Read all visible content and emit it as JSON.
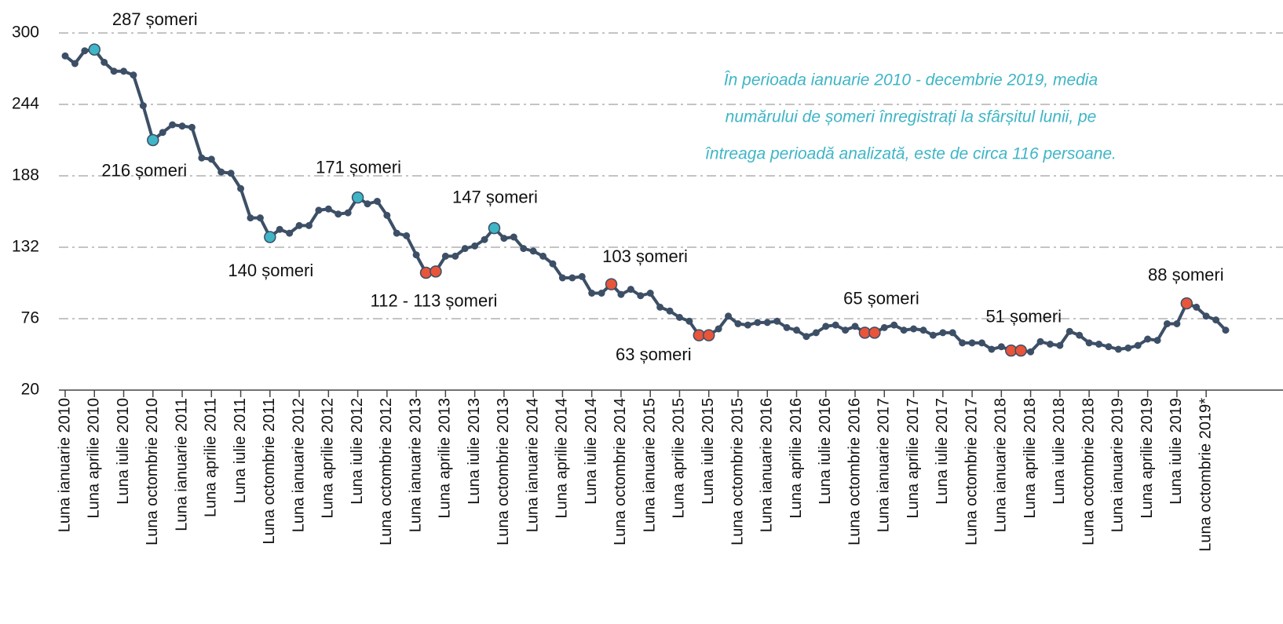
{
  "chart_data": {
    "type": "line",
    "categories": [
      "Luna ianuarie 2010",
      null,
      null,
      "Luna aprilie 2010",
      null,
      null,
      "Luna iulie 2010",
      null,
      null,
      "Luna octombrie 2010",
      null,
      null,
      "Luna ianuarie 2011",
      null,
      null,
      "Luna aprilie 2011",
      null,
      null,
      "Luna iulie 2011",
      null,
      null,
      "Luna octombrie 2011",
      null,
      null,
      "Luna ianuarie 2012",
      null,
      null,
      "Luna aprilie 2012",
      null,
      null,
      "Luna iulie 2012",
      null,
      null,
      "Luna octombrie 2012",
      null,
      null,
      "Luna ianuarie 2013",
      null,
      null,
      "Luna aprilie 2013",
      null,
      null,
      "Luna iulie 2013",
      null,
      null,
      "Luna octombrie 2013",
      null,
      null,
      "Luna ianuarie 2014",
      null,
      null,
      "Luna aprilie 2014",
      null,
      null,
      "Luna iulie 2014",
      null,
      null,
      "Luna octombrie 2014",
      null,
      null,
      "Luna ianuarie 2015",
      null,
      null,
      "Luna aprilie 2015",
      null,
      null,
      "Luna iulie 2015",
      null,
      null,
      "Luna octombrie 2015",
      null,
      null,
      "Luna ianuarie 2016",
      null,
      null,
      "Luna aprilie 2016",
      null,
      null,
      "Luna iulie 2016",
      null,
      null,
      "Luna octombrie 2016",
      null,
      null,
      "Luna ianuarie 2017",
      null,
      null,
      "Luna aprilie 2017",
      null,
      null,
      "Luna iulie 2017",
      null,
      null,
      "Luna octombrie 2017",
      null,
      null,
      "Luna ianuarie 2018",
      null,
      null,
      "Luna aprilie 2018",
      null,
      null,
      "Luna iulie 2018",
      null,
      null,
      "Luna octombrie 2018",
      null,
      null,
      "Luna ianuarie 2019",
      null,
      null,
      "Luna aprilie 2019",
      null,
      null,
      "Luna iulie 2019",
      null,
      null,
      "Luna octombrie 2019*",
      null,
      null
    ],
    "values": [
      282,
      276,
      286,
      287,
      277,
      270,
      270,
      267,
      243,
      216,
      222,
      228,
      227,
      226,
      202,
      201,
      191,
      190,
      178,
      155,
      155,
      140,
      146,
      143,
      149,
      149,
      161,
      162,
      158,
      159,
      171,
      166,
      168,
      157,
      143,
      141,
      126,
      112,
      113,
      125,
      125,
      131,
      133,
      138,
      147,
      139,
      140,
      131,
      129,
      125,
      119,
      108,
      108,
      109,
      96,
      96,
      103,
      95,
      99,
      94,
      96,
      85,
      82,
      77,
      74,
      63,
      63,
      68,
      78,
      72,
      71,
      73,
      73,
      74,
      69,
      67,
      62,
      65,
      70,
      71,
      67,
      70,
      65,
      65,
      69,
      71,
      67,
      68,
      67,
      63,
      65,
      65,
      57,
      57,
      57,
      52,
      54,
      51,
      51,
      50,
      58,
      56,
      55,
      66,
      63,
      57,
      56,
      54,
      52,
      53,
      55,
      60,
      59,
      72,
      72,
      88,
      85,
      78,
      75,
      67
    ],
    "color": "#3c4f66",
    "markers": [
      {
        "index": 3,
        "color": "#3fb5c6"
      },
      {
        "index": 9,
        "color": "#3fb5c6"
      },
      {
        "index": 21,
        "color": "#3fb5c6"
      },
      {
        "index": 30,
        "color": "#3fb5c6"
      },
      {
        "index": 44,
        "color": "#3fb5c6"
      },
      {
        "index": 37,
        "color": "#e8553a"
      },
      {
        "index": 38,
        "color": "#e8553a"
      },
      {
        "index": 56,
        "color": "#e8553a"
      },
      {
        "index": 65,
        "color": "#e8553a"
      },
      {
        "index": 66,
        "color": "#e8553a"
      },
      {
        "index": 82,
        "color": "#e8553a"
      },
      {
        "index": 83,
        "color": "#e8553a"
      },
      {
        "index": 97,
        "color": "#e8553a"
      },
      {
        "index": 98,
        "color": "#e8553a"
      },
      {
        "index": 115,
        "color": "#e8553a"
      }
    ],
    "annotations": [
      {
        "text": "287 șomeri",
        "index": 3
      },
      {
        "text": "216 șomeri",
        "index": 9
      },
      {
        "text": "140 șomeri",
        "index": 21
      },
      {
        "text": "171 șomeri",
        "index": 30
      },
      {
        "text": "147 șomeri",
        "index": 44
      },
      {
        "text": "112 - 113 șomeri",
        "index": 37
      },
      {
        "text": "103 șomeri",
        "index": 56
      },
      {
        "text": "63 șomeri",
        "index": 65
      },
      {
        "text": "65 șomeri",
        "index": 82
      },
      {
        "text": "51 șomeri",
        "index": 97
      },
      {
        "text": "88 șomeri",
        "index": 115
      }
    ],
    "note": [
      "În perioada ianuarie 2010 -  decembrie 2019, media",
      "numărului de șomeri înregistrați la sfârșitul lunii, pe",
      "întreaga perioadă analizată, este de circa 116 persoane."
    ],
    "note_color": "#3fb5c6",
    "ylim": [
      20,
      300
    ],
    "yticks": [
      20,
      76,
      132,
      188,
      244,
      300
    ],
    "grid": true
  }
}
